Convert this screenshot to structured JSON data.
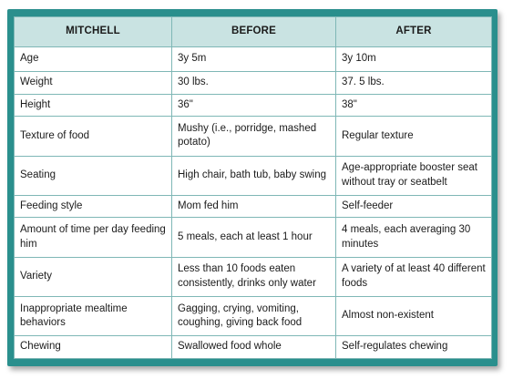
{
  "table": {
    "headers": [
      "MITCHELL",
      "BEFORE",
      "AFTER"
    ],
    "rows": [
      [
        "Age",
        "3y 5m",
        "3y 10m"
      ],
      [
        "Weight",
        "30 lbs.",
        "37. 5 lbs."
      ],
      [
        "Height",
        "36\"",
        "38\""
      ],
      [
        "Texture of food",
        "Mushy (i.e., porridge, mashed potato)",
        "Regular texture"
      ],
      [
        "Seating",
        "High chair, bath tub, baby swing",
        "Age-appropriate booster seat without tray or seatbelt"
      ],
      [
        "Feeding style",
        "Mom fed him",
        "Self-feeder"
      ],
      [
        "Amount of time per day feeding him",
        "5 meals, each at least 1 hour",
        "4 meals, each averaging 30 minutes"
      ],
      [
        "Variety",
        "Less than 10 foods eaten consistently, drinks only water",
        "A variety of at least 40 different foods"
      ],
      [
        "Inappropriate mealtime behaviors",
        "Gagging, crying, vomiting, coughing, giving back food",
        "Almost non-existent"
      ],
      [
        "Chewing",
        "Swallowed food whole",
        "Self-regulates chewing"
      ]
    ]
  },
  "colors": {
    "frame": "#2a8f8d",
    "header_bg": "#c9e3e2",
    "grid": "#7fb7b6"
  }
}
